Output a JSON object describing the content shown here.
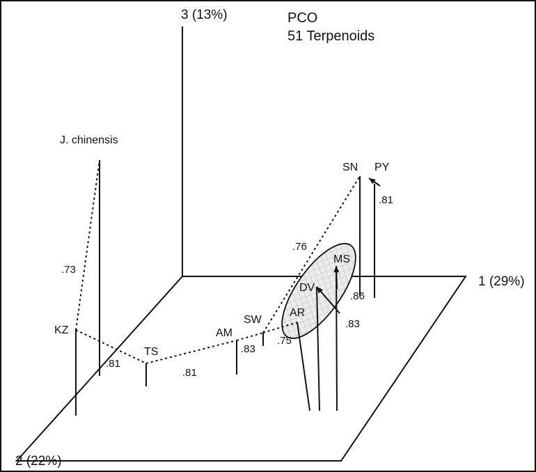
{
  "chart_data": {
    "type": "scatter",
    "title": "PCO",
    "subtitle": "51 Terpenoids",
    "axes": {
      "x": "1 (29%)",
      "y": "2 (22%)",
      "z": "3 (13%)"
    },
    "points": [
      {
        "label": "J. chinensis"
      },
      {
        "label": "KZ"
      },
      {
        "label": "TS"
      },
      {
        "label": "AM"
      },
      {
        "label": "SW"
      },
      {
        "label": "AR"
      },
      {
        "label": "DV"
      },
      {
        "label": "MS"
      },
      {
        "label": "SN"
      },
      {
        "label": "PY"
      }
    ],
    "links": [
      {
        "from": "KZ",
        "to": "J. chinensis",
        "value": ".73"
      },
      {
        "from": "KZ",
        "to": "TS",
        "value": ".81"
      },
      {
        "from": "TS",
        "to": "AM",
        "value": ".81"
      },
      {
        "from": "AM",
        "to": "SW",
        "value": ".83"
      },
      {
        "from": "SW",
        "to": "AR",
        "value": ".75"
      },
      {
        "from": "SW",
        "to": "SN",
        "value": ".76"
      },
      {
        "from": "MS",
        "to": "AR",
        "value": ".86"
      },
      {
        "from": "DV",
        "to": "AR",
        "value": ".83"
      },
      {
        "from": "SN",
        "to": "PY",
        "value": ".81"
      }
    ],
    "grid": false,
    "legend": "none"
  }
}
